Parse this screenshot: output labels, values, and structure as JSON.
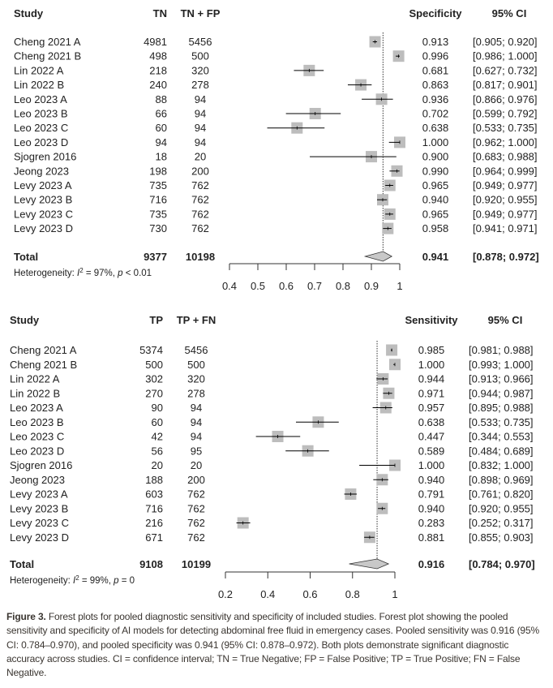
{
  "chart_data": [
    {
      "type": "forest",
      "measure_label": "Specificity",
      "ci_label": "95% CI",
      "study_label": "Study",
      "col1_label": "TN",
      "col2_label": "TN + FP",
      "xlim": [
        0.4,
        1
      ],
      "ticks": [
        0.4,
        0.5,
        0.6,
        0.7,
        0.8,
        0.9,
        1
      ],
      "tick_labels": [
        "0.4",
        "0.5",
        "0.6",
        "0.7",
        "0.8",
        "0.9",
        "1"
      ],
      "studies": [
        {
          "name": "Cheng 2021 A",
          "c1": "4981",
          "c2": "5456",
          "est": 0.913,
          "lo": 0.905,
          "hi": 0.92,
          "est_label": "0.913",
          "ci_text": "[0.905; 0.920]"
        },
        {
          "name": "Cheng 2021 B",
          "c1": "498",
          "c2": "500",
          "est": 0.996,
          "lo": 0.986,
          "hi": 1.0,
          "est_label": "0.996",
          "ci_text": "[0.986; 1.000]"
        },
        {
          "name": "Lin 2022 A",
          "c1": "218",
          "c2": "320",
          "est": 0.681,
          "lo": 0.627,
          "hi": 0.732,
          "est_label": "0.681",
          "ci_text": "[0.627; 0.732]"
        },
        {
          "name": "Lin 2022 B",
          "c1": "240",
          "c2": "278",
          "est": 0.863,
          "lo": 0.817,
          "hi": 0.901,
          "est_label": "0.863",
          "ci_text": "[0.817; 0.901]"
        },
        {
          "name": "Leo 2023 A",
          "c1": "88",
          "c2": "94",
          "est": 0.936,
          "lo": 0.866,
          "hi": 0.976,
          "est_label": "0.936",
          "ci_text": "[0.866; 0.976]"
        },
        {
          "name": "Leo 2023 B",
          "c1": "66",
          "c2": "94",
          "est": 0.702,
          "lo": 0.599,
          "hi": 0.792,
          "est_label": "0.702",
          "ci_text": "[0.599; 0.792]"
        },
        {
          "name": "Leo 2023 C",
          "c1": "60",
          "c2": "94",
          "est": 0.638,
          "lo": 0.533,
          "hi": 0.735,
          "est_label": "0.638",
          "ci_text": "[0.533; 0.735]"
        },
        {
          "name": "Leo 2023 D",
          "c1": "94",
          "c2": "94",
          "est": 1.0,
          "lo": 0.962,
          "hi": 1.0,
          "est_label": "1.000",
          "ci_text": "[0.962; 1.000]"
        },
        {
          "name": "Sjogren 2016",
          "c1": "18",
          "c2": "20",
          "est": 0.9,
          "lo": 0.683,
          "hi": 0.988,
          "est_label": "0.900",
          "ci_text": "[0.683; 0.988]"
        },
        {
          "name": "Jeong 2023",
          "c1": "198",
          "c2": "200",
          "est": 0.99,
          "lo": 0.964,
          "hi": 0.999,
          "est_label": "0.990",
          "ci_text": "[0.964; 0.999]"
        },
        {
          "name": "Levy 2023 A",
          "c1": "735",
          "c2": "762",
          "est": 0.965,
          "lo": 0.949,
          "hi": 0.977,
          "est_label": "0.965",
          "ci_text": "[0.949; 0.977]"
        },
        {
          "name": "Levy 2023 B",
          "c1": "716",
          "c2": "762",
          "est": 0.94,
          "lo": 0.92,
          "hi": 0.955,
          "est_label": "0.940",
          "ci_text": "[0.920; 0.955]"
        },
        {
          "name": "Levy 2023 C",
          "c1": "735",
          "c2": "762",
          "est": 0.965,
          "lo": 0.949,
          "hi": 0.977,
          "est_label": "0.965",
          "ci_text": "[0.949; 0.977]"
        },
        {
          "name": "Levy 2023 D",
          "c1": "730",
          "c2": "762",
          "est": 0.958,
          "lo": 0.941,
          "hi": 0.971,
          "est_label": "0.958",
          "ci_text": "[0.941; 0.971]"
        }
      ],
      "total": {
        "name": "Total",
        "c1": "9377",
        "c2": "10198",
        "est": 0.941,
        "lo": 0.878,
        "hi": 0.972,
        "est_label": "0.941",
        "ci_text": "[0.878; 0.972]"
      },
      "heterogeneity": {
        "prefix": "Heterogeneity: ",
        "i": "I",
        "sup": "2",
        "mid": " = 97%, ",
        "p": "p",
        "rest": " < 0.01"
      }
    },
    {
      "type": "forest",
      "measure_label": "Sensitivity",
      "ci_label": "95% CI",
      "study_label": "Study",
      "col1_label": "TP",
      "col2_label": "TP + FN",
      "xlim": [
        0.2,
        1
      ],
      "ticks": [
        0.2,
        0.4,
        0.6,
        0.8,
        1
      ],
      "tick_labels": [
        "0.2",
        "0.4",
        "0.6",
        "0.8",
        "1"
      ],
      "studies": [
        {
          "name": "Cheng 2021 A",
          "c1": "5374",
          "c2": "5456",
          "est": 0.985,
          "lo": 0.981,
          "hi": 0.988,
          "est_label": "0.985",
          "ci_text": "[0.981; 0.988]"
        },
        {
          "name": "Cheng 2021 B",
          "c1": "500",
          "c2": "500",
          "est": 1.0,
          "lo": 0.993,
          "hi": 1.0,
          "est_label": "1.000",
          "ci_text": "[0.993; 1.000]"
        },
        {
          "name": "Lin 2022 A",
          "c1": "302",
          "c2": "320",
          "est": 0.944,
          "lo": 0.913,
          "hi": 0.966,
          "est_label": "0.944",
          "ci_text": "[0.913; 0.966]"
        },
        {
          "name": "Lin 2022 B",
          "c1": "270",
          "c2": "278",
          "est": 0.971,
          "lo": 0.944,
          "hi": 0.987,
          "est_label": "0.971",
          "ci_text": "[0.944; 0.987]"
        },
        {
          "name": "Leo 2023 A",
          "c1": "90",
          "c2": "94",
          "est": 0.957,
          "lo": 0.895,
          "hi": 0.988,
          "est_label": "0.957",
          "ci_text": "[0.895; 0.988]"
        },
        {
          "name": "Leo 2023 B",
          "c1": "60",
          "c2": "94",
          "est": 0.638,
          "lo": 0.533,
          "hi": 0.735,
          "est_label": "0.638",
          "ci_text": "[0.533; 0.735]"
        },
        {
          "name": "Leo 2023 C",
          "c1": "42",
          "c2": "94",
          "est": 0.447,
          "lo": 0.344,
          "hi": 0.553,
          "est_label": "0.447",
          "ci_text": "[0.344; 0.553]"
        },
        {
          "name": "Leo 2023 D",
          "c1": "56",
          "c2": "95",
          "est": 0.589,
          "lo": 0.484,
          "hi": 0.689,
          "est_label": "0.589",
          "ci_text": "[0.484; 0.689]"
        },
        {
          "name": "Sjogren 2016",
          "c1": "20",
          "c2": "20",
          "est": 1.0,
          "lo": 0.832,
          "hi": 1.0,
          "est_label": "1.000",
          "ci_text": "[0.832; 1.000]"
        },
        {
          "name": "Jeong 2023",
          "c1": "188",
          "c2": "200",
          "est": 0.94,
          "lo": 0.898,
          "hi": 0.969,
          "est_label": "0.940",
          "ci_text": "[0.898; 0.969]"
        },
        {
          "name": "Levy 2023 A",
          "c1": "603",
          "c2": "762",
          "est": 0.791,
          "lo": 0.761,
          "hi": 0.82,
          "est_label": "0.791",
          "ci_text": "[0.761; 0.820]"
        },
        {
          "name": "Levy 2023 B",
          "c1": "716",
          "c2": "762",
          "est": 0.94,
          "lo": 0.92,
          "hi": 0.955,
          "est_label": "0.940",
          "ci_text": "[0.920; 0.955]"
        },
        {
          "name": "Levy 2023 C",
          "c1": "216",
          "c2": "762",
          "est": 0.283,
          "lo": 0.252,
          "hi": 0.317,
          "est_label": "0.283",
          "ci_text": "[0.252; 0.317]"
        },
        {
          "name": "Levy 2023 D",
          "c1": "671",
          "c2": "762",
          "est": 0.881,
          "lo": 0.855,
          "hi": 0.903,
          "est_label": "0.881",
          "ci_text": "[0.855; 0.903]"
        }
      ],
      "total": {
        "name": "Total",
        "c1": "9108",
        "c2": "10199",
        "est": 0.916,
        "lo": 0.784,
        "hi": 0.97,
        "est_label": "0.916",
        "ci_text": "[0.784; 0.970]"
      },
      "heterogeneity": {
        "prefix": "Heterogeneity: ",
        "i": "I",
        "sup": "2",
        "mid": " = 99%, ",
        "p": "p",
        "rest": " = 0"
      }
    }
  ],
  "caption": {
    "label": "Figure 3.",
    "text": " Forest plots for pooled diagnostic sensitivity and specificity of included studies. Forest plot showing the pooled sensitivity and specificity of AI models for detecting abdominal free fluid in emergency cases. Pooled sensitivity was 0.916 (95% CI: 0.784–0.970), and pooled specificity was 0.941 (95% CI: 0.878–0.972). Both plots demonstrate significant diagnostic accuracy across studies. CI = confidence interval; TN = True Negative; FP = False Positive; TP = True Positive; FN = False Negative."
  },
  "colors": {
    "square": "#bdbdbd",
    "line": "#000000",
    "diamond": "#c8c8c8",
    "caption": "#3a3530"
  }
}
